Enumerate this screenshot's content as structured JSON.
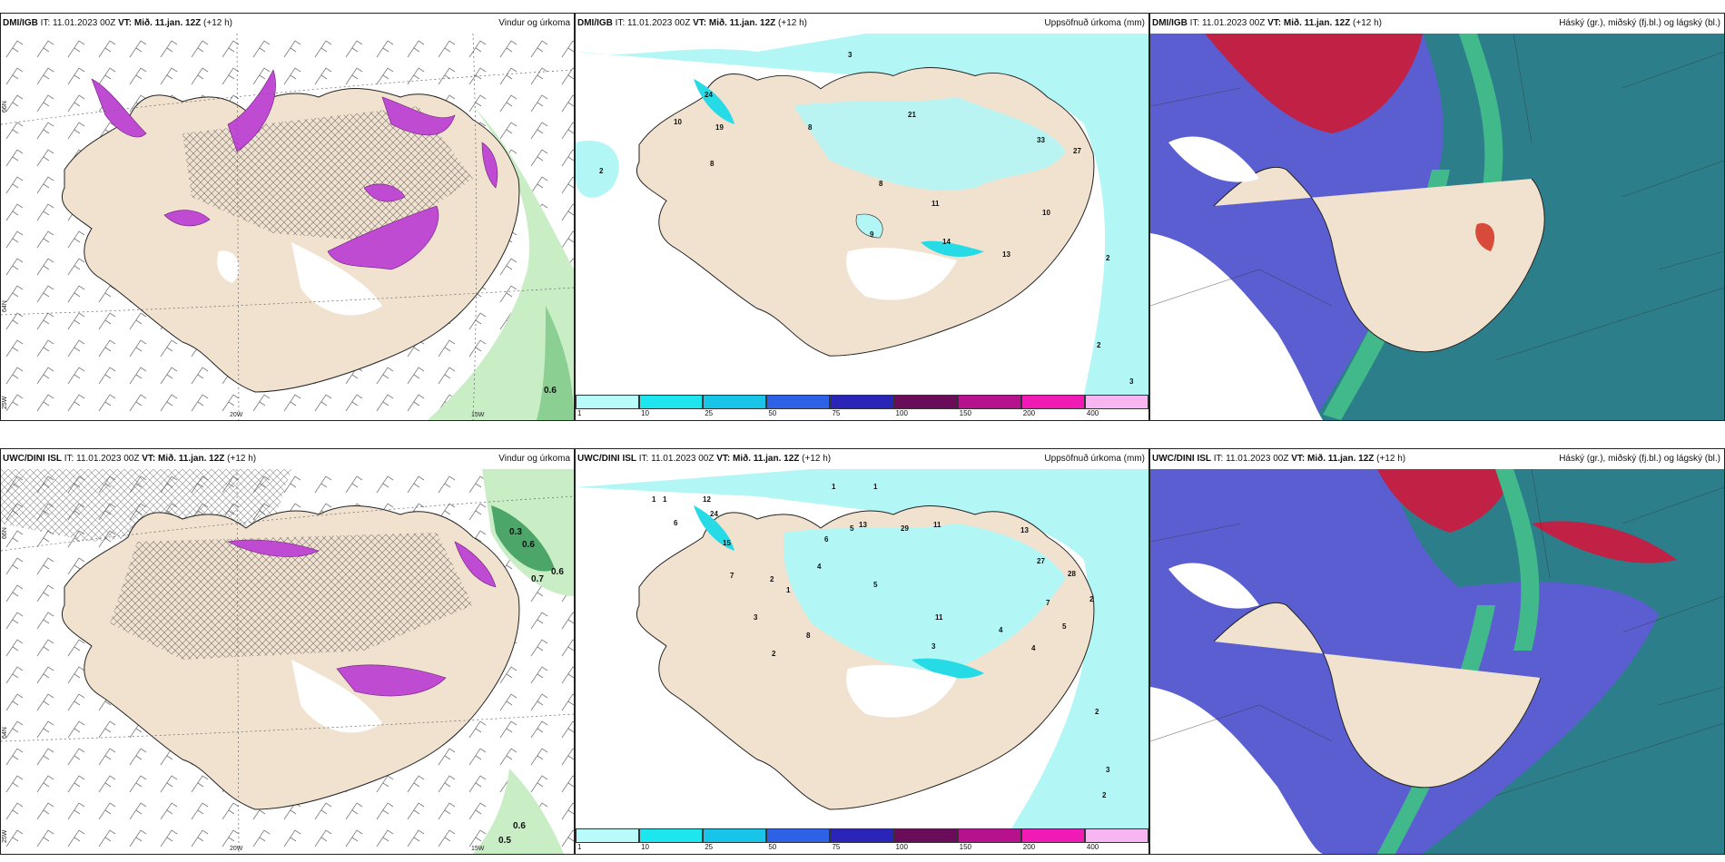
{
  "colors": {
    "land": "#f1e2d0",
    "cyan_light": "#b3f6f6",
    "cyan": "#26dbe6",
    "magenta": "#c04bd3",
    "green": "#c6efc3",
    "green_dark": "#4ca66a",
    "sky_blue": "#5b5ed0",
    "sky_red": "#c02144",
    "sky_teal": "#2d7e8b",
    "sky_green": "#42b98a"
  },
  "panels": [
    {
      "model": "DMI/IGB",
      "it_label": "IT:",
      "it_value": "11.01.2023 00Z",
      "vt_label": "VT:",
      "vt_value": "Mið. 11.jan. 12Z",
      "lead": "(+12 h)",
      "title": "Vindur og úrkoma"
    },
    {
      "model": "DMI/IGB",
      "it_label": "IT:",
      "it_value": "11.01.2023 00Z",
      "vt_label": "VT:",
      "vt_value": "Mið. 11.jan. 12Z",
      "lead": "(+12 h)",
      "title": "Uppsöfnuð úrkoma (mm)"
    },
    {
      "model": "DMI/IGB",
      "it_label": "IT:",
      "it_value": "11.01.2023 00Z",
      "vt_label": "VT:",
      "vt_value": "Mið. 11.jan. 12Z",
      "lead": "(+12 h)",
      "title": "Háský (gr.), miðský (fj.bl.) og lágský (bl.)"
    },
    {
      "model": "UWC/DINI ISL",
      "it_label": "IT:",
      "it_value": "11.01.2023 00Z",
      "vt_label": "VT:",
      "vt_value": "Mið. 11.jan. 12Z",
      "lead": "(+12 h)",
      "title": "Vindur og úrkoma"
    },
    {
      "model": "UWC/DINI ISL",
      "it_label": "IT:",
      "it_value": "11.01.2023 00Z",
      "vt_label": "VT:",
      "vt_value": "Mið. 11.jan. 12Z",
      "lead": "(+12 h)",
      "title": "Uppsöfnuð úrkoma (mm)"
    },
    {
      "model": "UWC/DINI ISL",
      "it_label": "IT:",
      "it_value": "11.01.2023 00Z",
      "vt_label": "VT:",
      "vt_value": "Mið. 11.jan. 12Z",
      "lead": "(+12 h)",
      "title": "Háský (gr.), miðský (fj.bl.) og lágský (bl.)"
    }
  ],
  "axes": {
    "lat_66": "66N",
    "lat_64": "64N",
    "lon_20w": "20W",
    "lon_15w": "15W",
    "lon_25w": "25W"
  },
  "legend": {
    "labels": [
      "1",
      "10",
      "25",
      "50",
      "75",
      "100",
      "150",
      "200",
      "400"
    ],
    "colors": [
      "#b9fbfb",
      "#1ee6ee",
      "#18c4e8",
      "#2d62e6",
      "#2a24b8",
      "#6b0c5a",
      "#b6128e",
      "#f01ab4",
      "#f7b6f2"
    ]
  },
  "wind_labels_top": {
    "a": "0.6"
  },
  "wind_labels_bottom": {
    "a": "0.3",
    "b": "0.6",
    "c": "0.7",
    "d": "0.6",
    "e": "0.6",
    "f": "0.5"
  },
  "precip_top": [
    "3",
    "24",
    "10",
    "19",
    "8",
    "8",
    "21",
    "8",
    "33",
    "27",
    "11",
    "10",
    "2",
    "9",
    "14",
    "13",
    "2",
    "2",
    "3"
  ],
  "precip_bottom": [
    "1",
    "1",
    "1",
    "1",
    "12",
    "24",
    "6",
    "15",
    "6",
    "7",
    "5",
    "1",
    "2",
    "8",
    "4",
    "2",
    "3",
    "5",
    "13",
    "11",
    "29",
    "11",
    "3",
    "4",
    "13",
    "27",
    "28",
    "2",
    "7",
    "5",
    "4",
    "2",
    "3",
    "2"
  ]
}
